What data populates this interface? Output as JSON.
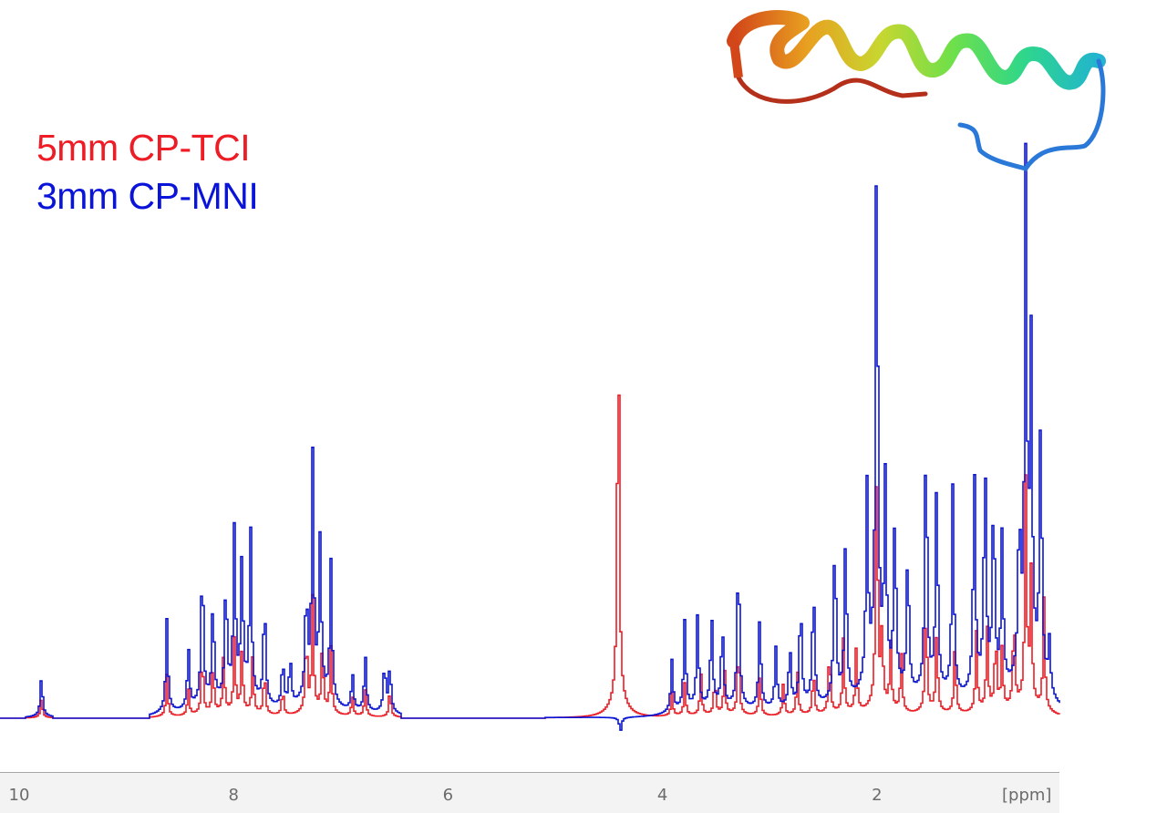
{
  "chart_data": {
    "type": "line",
    "title": "",
    "xlabel": "[ppm]",
    "ylabel": "",
    "x_axis": {
      "range": [
        10.0,
        0.1
      ],
      "reversed": true,
      "major_ticks": [
        10,
        8,
        6,
        4,
        2
      ],
      "minor_step": 0.5
    },
    "grid": false,
    "legend": {
      "position": "top-left",
      "entries": [
        {
          "label": "5mm CP-TCI",
          "color": "#ee1c25"
        },
        {
          "label": "3mm CP-MNI",
          "color": "#0a14d8"
        }
      ]
    },
    "series": [
      {
        "name": "5mm CP-TCI",
        "color": "#ee1c25",
        "peaks_ppm_height": [
          [
            9.8,
            22
          ],
          [
            8.63,
            45
          ],
          [
            8.43,
            30
          ],
          [
            8.3,
            70
          ],
          [
            8.2,
            55
          ],
          [
            8.1,
            65
          ],
          [
            8.0,
            80
          ],
          [
            7.93,
            70
          ],
          [
            7.83,
            60
          ],
          [
            7.72,
            50
          ],
          [
            7.55,
            30
          ],
          [
            7.33,
            90
          ],
          [
            7.27,
            120
          ],
          [
            7.18,
            75
          ],
          [
            7.1,
            70
          ],
          [
            6.9,
            22
          ],
          [
            6.78,
            30
          ],
          [
            6.55,
            30
          ],
          [
            4.42,
            480
          ],
          [
            3.92,
            25
          ],
          [
            3.8,
            35
          ],
          [
            3.65,
            45
          ],
          [
            3.52,
            40
          ],
          [
            3.43,
            50
          ],
          [
            3.3,
            80
          ],
          [
            3.1,
            45
          ],
          [
            2.88,
            35
          ],
          [
            2.75,
            50
          ],
          [
            2.6,
            50
          ],
          [
            2.45,
            75
          ],
          [
            2.32,
            80
          ],
          [
            2.2,
            70
          ],
          [
            2.01,
            295
          ],
          [
            1.96,
            80
          ],
          [
            1.88,
            70
          ],
          [
            1.78,
            65
          ],
          [
            1.55,
            120
          ],
          [
            1.45,
            90
          ],
          [
            1.28,
            75
          ],
          [
            1.08,
            85
          ],
          [
            0.98,
            90
          ],
          [
            0.9,
            85
          ],
          [
            0.84,
            65
          ],
          [
            0.73,
            110
          ],
          [
            0.62,
            240
          ],
          [
            0.57,
            140
          ],
          [
            0.45,
            120
          ]
        ]
      },
      {
        "name": "3mm CP-MNI",
        "color": "#0a14d8",
        "peaks_ppm_height": [
          [
            9.8,
            43
          ],
          [
            8.63,
            100
          ],
          [
            8.43,
            65
          ],
          [
            8.3,
            160
          ],
          [
            8.2,
            110
          ],
          [
            8.08,
            130
          ],
          [
            8.0,
            180
          ],
          [
            7.93,
            150
          ],
          [
            7.85,
            180
          ],
          [
            7.72,
            115
          ],
          [
            7.55,
            50
          ],
          [
            7.48,
            50
          ],
          [
            7.33,
            115
          ],
          [
            7.27,
            255
          ],
          [
            7.2,
            170
          ],
          [
            7.1,
            150
          ],
          [
            6.9,
            40
          ],
          [
            6.78,
            60
          ],
          [
            6.6,
            52
          ],
          [
            6.55,
            50
          ],
          [
            4.4,
            -15
          ],
          [
            3.92,
            55
          ],
          [
            3.8,
            95
          ],
          [
            3.68,
            100
          ],
          [
            3.55,
            100
          ],
          [
            3.45,
            90
          ],
          [
            3.3,
            170
          ],
          [
            3.1,
            100
          ],
          [
            2.95,
            65
          ],
          [
            2.82,
            65
          ],
          [
            2.72,
            115
          ],
          [
            2.6,
            130
          ],
          [
            2.4,
            180
          ],
          [
            2.3,
            175
          ],
          [
            2.1,
            210
          ],
          [
            2.01,
            615
          ],
          [
            1.93,
            210
          ],
          [
            1.84,
            190
          ],
          [
            1.72,
            160
          ],
          [
            1.55,
            285
          ],
          [
            1.45,
            230
          ],
          [
            1.3,
            225
          ],
          [
            1.1,
            240
          ],
          [
            1.0,
            250
          ],
          [
            0.92,
            210
          ],
          [
            0.84,
            165
          ],
          [
            0.68,
            170
          ],
          [
            0.62,
            537
          ],
          [
            0.57,
            340
          ],
          [
            0.48,
            295
          ],
          [
            0.4,
            55
          ]
        ]
      }
    ],
    "annotations": [
      "protein ribbon structure (alpha-helix, rainbow coloured N→C)"
    ]
  },
  "legend": {
    "items": [
      {
        "label": "5mm CP-TCI",
        "color": "#ee1c25"
      },
      {
        "label": "3mm CP-MNI",
        "color": "#0a14d8"
      }
    ]
  },
  "axis": {
    "ticks": [
      {
        "label": "10",
        "ppm": 10
      },
      {
        "label": "8",
        "ppm": 8
      },
      {
        "label": "6",
        "ppm": 6
      },
      {
        "label": "4",
        "ppm": 4
      },
      {
        "label": "2",
        "ppm": 2
      }
    ],
    "unit": "[ppm]"
  }
}
